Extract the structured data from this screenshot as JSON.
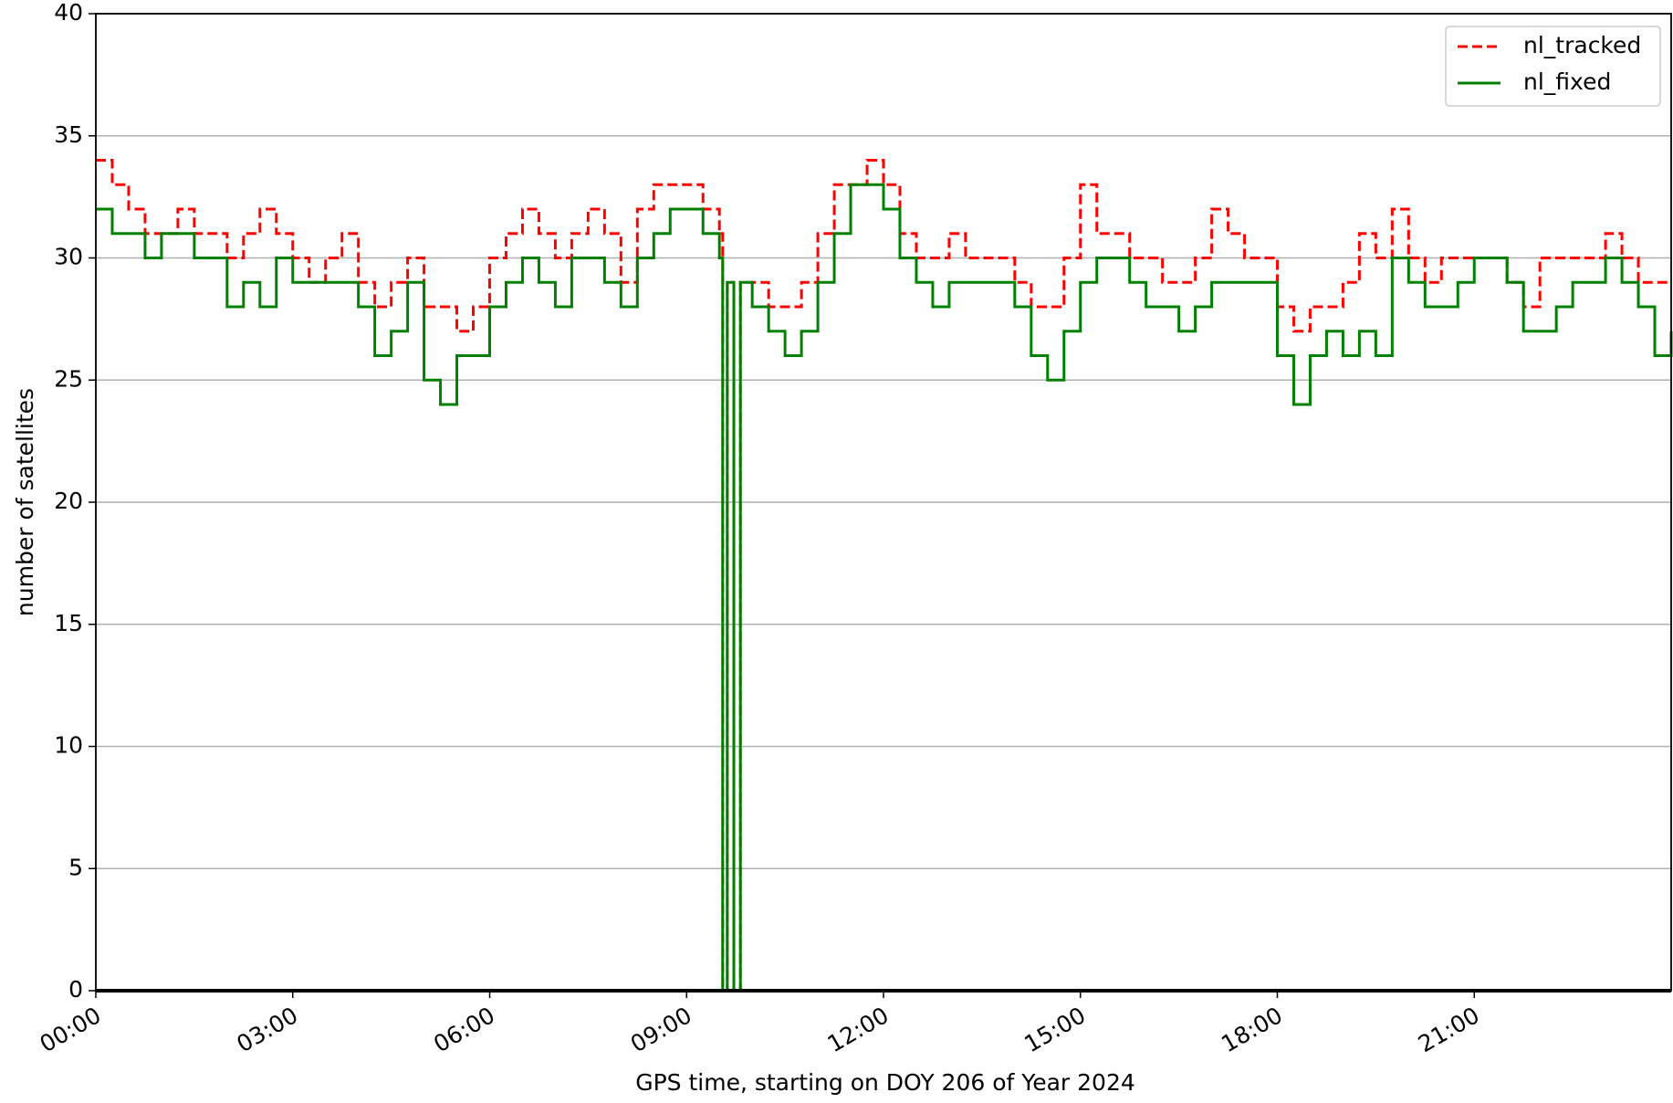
{
  "chart_data": {
    "type": "line",
    "drawstyle": "steps-post",
    "xlabel": "GPS time, starting on DOY 206 of Year 2024",
    "ylabel": "number of satellites",
    "xlim": [
      0,
      24
    ],
    "ylim": [
      0,
      40
    ],
    "xticks": [
      {
        "value": 0,
        "label": "00:00"
      },
      {
        "value": 3,
        "label": "03:00"
      },
      {
        "value": 6,
        "label": "06:00"
      },
      {
        "value": 9,
        "label": "09:00"
      },
      {
        "value": 12,
        "label": "12:00"
      },
      {
        "value": 15,
        "label": "15:00"
      },
      {
        "value": 18,
        "label": "18:00"
      },
      {
        "value": 21,
        "label": "21:00"
      }
    ],
    "yticks": [
      0,
      5,
      10,
      15,
      20,
      25,
      30,
      35,
      40
    ],
    "grid": true,
    "legend": "upper right",
    "x": [
      0,
      0.25,
      0.5,
      0.75,
      1,
      1.25,
      1.5,
      1.75,
      2,
      2.25,
      2.5,
      2.75,
      3,
      3.25,
      3.5,
      3.75,
      4,
      4.25,
      4.5,
      4.75,
      5,
      5.25,
      5.5,
      5.75,
      6,
      6.25,
      6.5,
      6.75,
      7,
      7.25,
      7.5,
      7.75,
      8,
      8.25,
      8.5,
      8.75,
      9,
      9.25,
      9.5,
      9.55,
      9.62,
      9.72,
      9.82,
      10,
      10.25,
      10.5,
      10.75,
      11,
      11.25,
      11.5,
      11.75,
      12,
      12.25,
      12.5,
      12.75,
      13,
      13.25,
      13.5,
      13.75,
      14,
      14.25,
      14.5,
      14.75,
      15,
      15.25,
      15.5,
      15.75,
      16,
      16.25,
      16.5,
      16.75,
      17,
      17.25,
      17.5,
      17.75,
      18,
      18.25,
      18.5,
      18.75,
      19,
      19.25,
      19.5,
      19.75,
      20,
      20.25,
      20.5,
      20.75,
      21,
      21.25,
      21.5,
      21.75,
      22,
      22.25,
      22.5,
      22.75,
      23,
      23.25,
      23.5,
      23.75,
      24
    ],
    "series": [
      {
        "name": "nl_tracked",
        "color": "#ff0000",
        "dashed": true,
        "values": [
          34,
          33,
          32,
          31,
          31,
          32,
          31,
          31,
          30,
          31,
          32,
          31,
          30,
          29,
          30,
          31,
          29,
          28,
          29,
          30,
          28,
          28,
          27,
          28,
          30,
          31,
          32,
          31,
          30,
          31,
          32,
          31,
          29,
          32,
          33,
          33,
          33,
          32,
          31,
          0,
          29,
          0,
          29,
          29,
          28,
          28,
          29,
          31,
          33,
          33,
          34,
          33,
          31,
          30,
          30,
          31,
          30,
          30,
          30,
          29,
          28,
          28,
          30,
          33,
          31,
          31,
          30,
          30,
          29,
          29,
          30,
          32,
          31,
          30,
          30,
          28,
          27,
          28,
          28,
          29,
          31,
          30,
          32,
          30,
          29,
          30,
          30,
          30,
          30,
          29,
          28,
          30,
          30,
          30,
          30,
          31,
          30,
          29,
          29,
          29
        ]
      },
      {
        "name": "nl_fixed",
        "color": "#008000",
        "dashed": false,
        "values": [
          32,
          31,
          31,
          30,
          31,
          31,
          30,
          30,
          28,
          29,
          28,
          30,
          29,
          29,
          29,
          29,
          28,
          26,
          27,
          29,
          25,
          24,
          26,
          26,
          28,
          29,
          30,
          29,
          28,
          30,
          30,
          29,
          28,
          30,
          31,
          32,
          32,
          31,
          30,
          0,
          29,
          0,
          29,
          28,
          27,
          26,
          27,
          29,
          31,
          33,
          33,
          32,
          30,
          29,
          28,
          29,
          29,
          29,
          29,
          28,
          26,
          25,
          27,
          29,
          30,
          30,
          29,
          28,
          28,
          27,
          28,
          29,
          29,
          29,
          29,
          26,
          24,
          26,
          27,
          26,
          27,
          26,
          30,
          29,
          28,
          28,
          29,
          30,
          30,
          29,
          27,
          27,
          28,
          29,
          29,
          30,
          29,
          28,
          26,
          27
        ]
      }
    ]
  }
}
